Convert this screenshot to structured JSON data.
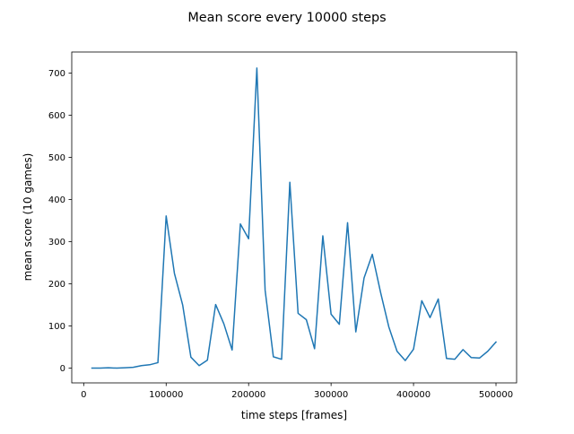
{
  "chart_data": {
    "type": "line",
    "title": "Mean score every 10000 steps",
    "xlabel": "time steps [frames]",
    "ylabel": "mean score (10 games)",
    "xlim": [
      -14500,
      525000
    ],
    "ylim": [
      -35,
      750
    ],
    "xticks": [
      0,
      100000,
      200000,
      300000,
      400000,
      500000
    ],
    "xtick_labels": [
      "0",
      "100000",
      "200000",
      "300000",
      "400000",
      "500000"
    ],
    "yticks": [
      0,
      100,
      200,
      300,
      400,
      500,
      600,
      700
    ],
    "ytick_labels": [
      "0",
      "100",
      "200",
      "300",
      "400",
      "500",
      "600",
      "700"
    ],
    "grid": false,
    "series": [
      {
        "color": "#1f77b4",
        "x": [
          10000,
          20000,
          30000,
          40000,
          50000,
          60000,
          70000,
          80000,
          90000,
          100000,
          110000,
          120000,
          130000,
          140000,
          150000,
          160000,
          170000,
          180000,
          190000,
          200000,
          210000,
          220000,
          230000,
          240000,
          250000,
          260000,
          270000,
          280000,
          290000,
          300000,
          310000,
          320000,
          330000,
          340000,
          350000,
          360000,
          370000,
          380000,
          390000,
          400000,
          410000,
          420000,
          430000,
          440000,
          450000,
          460000,
          470000,
          480000,
          490000,
          500000
        ],
        "values": [
          0,
          0,
          1,
          0,
          1,
          2,
          6,
          8,
          13,
          361,
          225,
          150,
          26,
          6,
          19,
          151,
          105,
          43,
          342,
          307,
          712,
          185,
          27,
          21,
          441,
          130,
          115,
          46,
          314,
          128,
          104,
          345,
          86,
          214,
          270,
          180,
          98,
          40,
          18,
          45,
          160,
          120,
          164,
          23,
          21,
          44,
          25,
          24,
          40,
          62
        ]
      }
    ]
  }
}
